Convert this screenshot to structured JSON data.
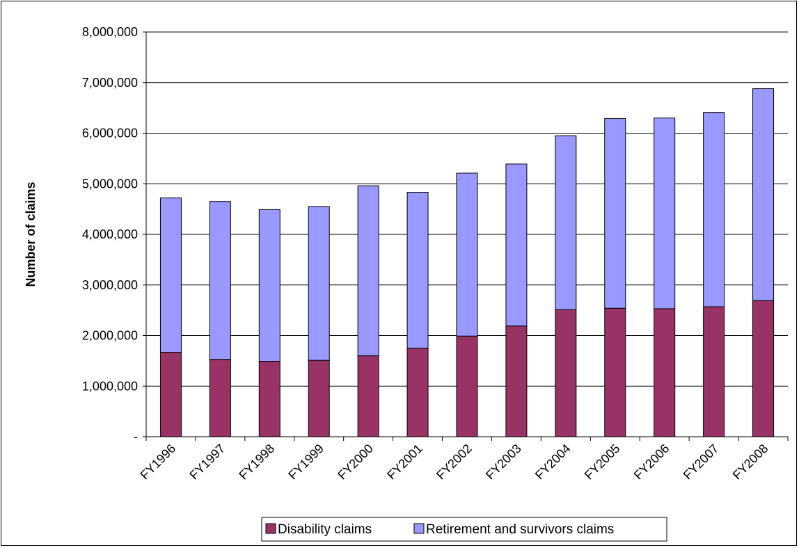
{
  "chart_data": {
    "type": "bar",
    "stacked": true,
    "title": "",
    "xlabel": "",
    "ylabel": "Number of claims",
    "ylim": [
      0,
      8000000
    ],
    "yticks": [
      0,
      1000000,
      2000000,
      3000000,
      4000000,
      5000000,
      6000000,
      7000000,
      8000000
    ],
    "ytick_labels": [
      "-",
      "1,000,000",
      "2,000,000",
      "3,000,000",
      "4,000,000",
      "5,000,000",
      "6,000,000",
      "7,000,000",
      "8,000,000"
    ],
    "categories": [
      "FY1996",
      "FY1997",
      "FY1998",
      "FY1999",
      "FY2000",
      "FY2001",
      "FY2002",
      "FY2003",
      "FY2004",
      "FY2005",
      "FY2006",
      "FY2007",
      "FY2008"
    ],
    "series": [
      {
        "name": "Disability claims",
        "color": "#993366",
        "values": [
          1670000,
          1530000,
          1490000,
          1510000,
          1600000,
          1750000,
          1990000,
          2190000,
          2510000,
          2540000,
          2530000,
          2570000,
          2690000
        ]
      },
      {
        "name": "Retirement and survivors claims",
        "color": "#9999ff",
        "values": [
          3050000,
          3120000,
          3000000,
          3040000,
          3360000,
          3080000,
          3220000,
          3200000,
          3440000,
          3750000,
          3770000,
          3840000,
          4190000
        ]
      }
    ],
    "grid": true,
    "legend_position": "bottom"
  }
}
